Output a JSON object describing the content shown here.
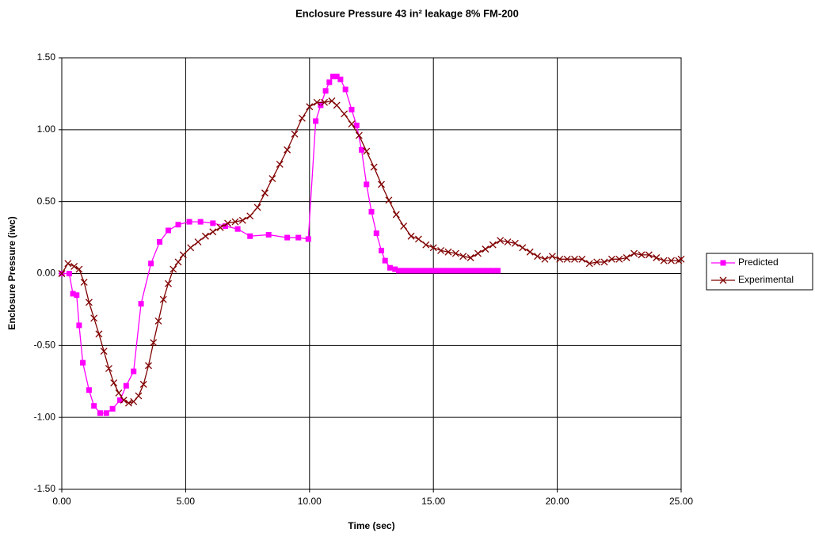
{
  "chart_data": {
    "type": "line",
    "title": "Enclosure Pressure 43 in² leakage 8% FM-200",
    "x_label": "Time (sec)",
    "y_label": "Enclosure Pressure (iwc)",
    "xlim": [
      0,
      25
    ],
    "ylim": [
      -1.5,
      1.5
    ],
    "xticks": [
      {
        "value": 0,
        "label": "0.00"
      },
      {
        "value": 5,
        "label": "5.00"
      },
      {
        "value": 10,
        "label": "10.00"
      },
      {
        "value": 15,
        "label": "15.00"
      },
      {
        "value": 20,
        "label": "20.00"
      },
      {
        "value": 25,
        "label": "25.00"
      }
    ],
    "yticks": [
      {
        "value": -1.5,
        "label": "-1.50"
      },
      {
        "value": -1,
        "label": "-1.00"
      },
      {
        "value": -0.5,
        "label": "-0.50"
      },
      {
        "value": 0,
        "label": "0.00"
      },
      {
        "value": 0.5,
        "label": "0.50"
      },
      {
        "value": 1,
        "label": "1.00"
      },
      {
        "value": 1.5,
        "label": "1.50"
      }
    ],
    "grid": true,
    "legend": "right",
    "series": [
      {
        "name": "Predicted",
        "color": "#ff00ff",
        "marker": "square",
        "x": [
          0,
          0.3,
          0.45,
          0.6,
          0.7,
          0.85,
          1.1,
          1.3,
          1.55,
          1.8,
          2.05,
          2.35,
          2.6,
          2.9,
          3.2,
          3.6,
          3.95,
          4.3,
          4.7,
          5.15,
          5.6,
          6.1,
          6.6,
          7.1,
          7.6,
          8.35,
          9.1,
          9.55,
          9.95,
          10.25,
          10.45,
          10.65,
          10.8,
          10.95,
          11.1,
          11.25,
          11.45,
          11.7,
          11.9,
          12.1,
          12.3,
          12.5,
          12.7,
          12.9,
          13.05,
          13.25,
          13.45,
          13.6,
          13.8,
          14.0,
          14.2,
          14.4,
          14.6,
          14.8,
          15.0,
          15.2,
          15.4,
          15.6,
          15.8,
          16.0,
          16.2,
          16.4,
          16.6,
          16.8,
          17.0,
          17.2,
          17.4,
          17.6
        ],
        "values": [
          0,
          0,
          -0.14,
          -0.15,
          -0.36,
          -0.62,
          -0.81,
          -0.92,
          -0.97,
          -0.97,
          -0.94,
          -0.88,
          -0.78,
          -0.68,
          -0.21,
          0.07,
          0.22,
          0.3,
          0.34,
          0.36,
          0.36,
          0.35,
          0.33,
          0.31,
          0.26,
          0.27,
          0.25,
          0.25,
          0.24,
          1.06,
          1.17,
          1.27,
          1.33,
          1.37,
          1.37,
          1.35,
          1.28,
          1.14,
          1.03,
          0.86,
          0.62,
          0.43,
          0.28,
          0.16,
          0.09,
          0.04,
          0.03,
          0.02,
          0.02,
          0.02,
          0.02,
          0.02,
          0.02,
          0.02,
          0.02,
          0.02,
          0.02,
          0.02,
          0.02,
          0.02,
          0.02,
          0.02,
          0.02,
          0.02,
          0.02,
          0.02,
          0.02,
          0.02
        ]
      },
      {
        "name": "Experimental",
        "color": "#800000",
        "marker": "cross",
        "x": [
          0,
          0.25,
          0.5,
          0.7,
          0.9,
          1.1,
          1.3,
          1.5,
          1.7,
          1.9,
          2.1,
          2.3,
          2.5,
          2.7,
          2.9,
          3.1,
          3.3,
          3.5,
          3.7,
          3.9,
          4.1,
          4.3,
          4.5,
          4.7,
          4.9,
          5.2,
          5.5,
          5.8,
          6.1,
          6.4,
          6.7,
          7.0,
          7.3,
          7.6,
          7.9,
          8.2,
          8.5,
          8.8,
          9.1,
          9.4,
          9.7,
          10.0,
          10.3,
          10.6,
          10.9,
          11.1,
          11.4,
          11.7,
          12.0,
          12.3,
          12.6,
          12.9,
          13.2,
          13.5,
          13.8,
          14.1,
          14.4,
          14.7,
          15.0,
          15.3,
          15.6,
          15.9,
          16.2,
          16.5,
          16.8,
          17.1,
          17.4,
          17.7,
          18.0,
          18.3,
          18.6,
          18.9,
          19.2,
          19.5,
          19.8,
          20.1,
          20.4,
          20.7,
          21.0,
          21.3,
          21.6,
          21.9,
          22.2,
          22.5,
          22.8,
          23.1,
          23.4,
          23.7,
          24.0,
          24.3,
          24.6,
          24.9,
          25.0
        ],
        "values": [
          0,
          0.07,
          0.05,
          0.03,
          -0.06,
          -0.2,
          -0.31,
          -0.42,
          -0.54,
          -0.66,
          -0.76,
          -0.83,
          -0.88,
          -0.9,
          -0.89,
          -0.85,
          -0.77,
          -0.64,
          -0.48,
          -0.33,
          -0.18,
          -0.07,
          0.03,
          0.08,
          0.13,
          0.18,
          0.22,
          0.26,
          0.29,
          0.32,
          0.35,
          0.36,
          0.37,
          0.4,
          0.46,
          0.56,
          0.66,
          0.76,
          0.86,
          0.97,
          1.08,
          1.16,
          1.19,
          1.19,
          1.2,
          1.17,
          1.11,
          1.04,
          0.96,
          0.85,
          0.74,
          0.62,
          0.51,
          0.41,
          0.33,
          0.26,
          0.24,
          0.2,
          0.18,
          0.16,
          0.15,
          0.14,
          0.12,
          0.11,
          0.14,
          0.17,
          0.2,
          0.23,
          0.22,
          0.21,
          0.18,
          0.15,
          0.12,
          0.1,
          0.12,
          0.1,
          0.1,
          0.1,
          0.1,
          0.07,
          0.08,
          0.08,
          0.1,
          0.1,
          0.11,
          0.14,
          0.13,
          0.13,
          0.11,
          0.09,
          0.09,
          0.09,
          0.1
        ]
      }
    ]
  }
}
